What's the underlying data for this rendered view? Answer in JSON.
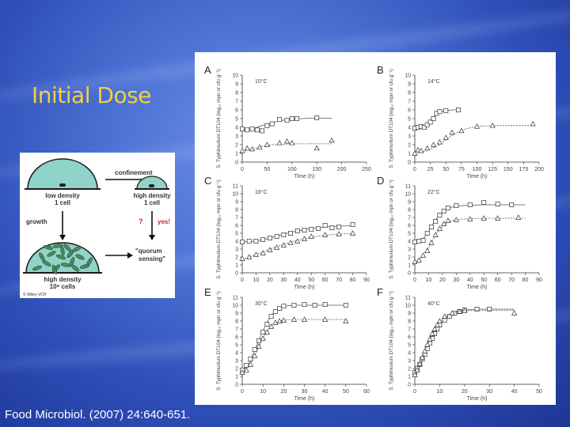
{
  "slide": {
    "title": "Initial Dose",
    "citation": "Food Microbiol. (2007) 24:640-651."
  },
  "quorum_diagram": {
    "confinement": "confinement",
    "low_density": "low density",
    "low_density_cells": "1 cell",
    "high_density_top": "high density",
    "high_density_top_cells": "1 cell",
    "growth": "growth",
    "question": "?",
    "yes": "yes!",
    "quorum_line1": "\"quorum",
    "quorum_line2": "sensing\"",
    "high_density_bottom": "high density",
    "high_density_bottom_cells": "10⁸ cells",
    "credit": "© Wiley-VCH"
  },
  "colors": {
    "title": "#f2d040",
    "background": "#3b5cc4",
    "dome": "#8fd3c9",
    "cells": "#4a8a5c",
    "red_label": "#d8232a"
  },
  "chart_data": [
    {
      "type": "scatter",
      "panel": "A",
      "annotation": "10°C",
      "ylabel": "S. Typhimurium DT104 (log₁₀ mpn or cfu g⁻¹)",
      "xlabel": "Time (h)",
      "xlim": [
        0,
        250
      ],
      "ylim": [
        0,
        10
      ],
      "xticks": [
        "0",
        "50",
        "100",
        "150",
        "200",
        "250"
      ],
      "yticks": [
        "0",
        "1",
        "2",
        "3",
        "4",
        "5",
        "6",
        "7",
        "8",
        "9",
        "10"
      ],
      "series": [
        {
          "marker": "square",
          "x": [
            0,
            10,
            20,
            30,
            40,
            50,
            60,
            75,
            90,
            100,
            110,
            150
          ],
          "y": [
            3.8,
            3.7,
            3.8,
            3.7,
            3.6,
            4.2,
            4.4,
            4.9,
            4.8,
            5.0,
            5.0,
            5.1
          ],
          "fit_x": [
            0,
            20,
            40,
            60,
            80,
            100,
            120,
            140,
            160,
            180
          ],
          "fit_y": [
            3.6,
            3.8,
            4.2,
            4.5,
            4.8,
            4.95,
            5.0,
            5.05,
            5.05,
            5.05
          ]
        },
        {
          "marker": "triangle",
          "x": [
            0,
            10,
            20,
            35,
            50,
            75,
            90,
            100,
            150,
            180
          ],
          "y": [
            1.3,
            1.6,
            1.5,
            1.7,
            2.0,
            2.2,
            2.4,
            2.2,
            1.6,
            2.5
          ],
          "fit_x": [
            0,
            20,
            40,
            60,
            80,
            100,
            140,
            180
          ],
          "fit_y": [
            1.2,
            1.5,
            1.8,
            2.0,
            2.05,
            2.1,
            2.1,
            2.1
          ]
        }
      ]
    },
    {
      "type": "scatter",
      "panel": "B",
      "annotation": "14°C",
      "ylabel": "S. Typhimurium DT104 (log₁₀ mpn or cfu g⁻¹)",
      "xlabel": "Time (h)",
      "xlim": [
        0,
        200
      ],
      "ylim": [
        0,
        10
      ],
      "xticks": [
        "0",
        "25",
        "50",
        "75",
        "100",
        "125",
        "150",
        "175",
        "200"
      ],
      "yticks": [
        "0",
        "1",
        "2",
        "3",
        "4",
        "5",
        "6",
        "7",
        "8",
        "9",
        "10"
      ],
      "series": [
        {
          "marker": "square",
          "x": [
            0,
            5,
            10,
            15,
            20,
            25,
            30,
            35,
            40,
            50,
            70
          ],
          "y": [
            3.9,
            4.0,
            4.1,
            4.0,
            4.3,
            4.6,
            5.0,
            5.6,
            5.8,
            5.9,
            6.0
          ],
          "fit_x": [
            0,
            10,
            20,
            30,
            40,
            50,
            60,
            70
          ],
          "fit_y": [
            3.9,
            4.0,
            4.4,
            5.2,
            5.8,
            5.9,
            6.0,
            6.0
          ]
        },
        {
          "marker": "triangle",
          "x": [
            0,
            5,
            10,
            20,
            30,
            40,
            50,
            60,
            75,
            100,
            125,
            190
          ],
          "y": [
            1.0,
            1.4,
            1.3,
            1.6,
            2.0,
            2.3,
            2.8,
            3.4,
            3.6,
            4.1,
            4.2,
            4.4
          ],
          "fit_x": [
            0,
            20,
            40,
            60,
            80,
            100,
            125,
            150,
            190
          ],
          "fit_y": [
            1.0,
            1.3,
            2.0,
            3.1,
            3.8,
            4.1,
            4.2,
            4.2,
            4.2
          ]
        }
      ]
    },
    {
      "type": "scatter",
      "panel": "C",
      "annotation": "18°C",
      "ylabel": "S. Typhimurium DT104 (log₁₀ mpn or cfu g⁻¹)",
      "xlabel": "Time (h)",
      "xlim": [
        0,
        90
      ],
      "ylim": [
        0,
        11
      ],
      "xticks": [
        "0",
        "10",
        "20",
        "30",
        "40",
        "50",
        "60",
        "70",
        "80",
        "90"
      ],
      "yticks": [
        "0",
        "1",
        "2",
        "3",
        "4",
        "5",
        "6",
        "7",
        "8",
        "9",
        "10",
        "11"
      ],
      "series": [
        {
          "marker": "square",
          "x": [
            0,
            5,
            10,
            15,
            20,
            25,
            30,
            35,
            40,
            45,
            50,
            55,
            60,
            65,
            70,
            80
          ],
          "y": [
            3.9,
            4.0,
            4.0,
            4.2,
            4.4,
            4.6,
            4.8,
            5.0,
            5.3,
            5.4,
            5.5,
            5.6,
            6.0,
            5.7,
            5.8,
            6.1
          ],
          "fit_x": [
            0,
            10,
            20,
            30,
            40,
            50,
            60,
            70,
            80
          ],
          "fit_y": [
            3.9,
            4.0,
            4.4,
            4.9,
            5.3,
            5.6,
            5.8,
            5.9,
            5.95
          ]
        },
        {
          "marker": "triangle",
          "x": [
            0,
            5,
            10,
            15,
            20,
            25,
            30,
            35,
            40,
            45,
            50,
            60,
            70,
            80
          ],
          "y": [
            1.8,
            2.0,
            2.3,
            2.5,
            2.9,
            3.2,
            3.5,
            3.8,
            4.0,
            4.3,
            4.6,
            4.8,
            4.9,
            5.0
          ],
          "fit_x": [
            0,
            10,
            20,
            30,
            40,
            50,
            60,
            70,
            80
          ],
          "fit_y": [
            1.7,
            2.3,
            3.0,
            3.6,
            4.1,
            4.5,
            4.75,
            4.9,
            4.95
          ]
        }
      ]
    },
    {
      "type": "scatter",
      "panel": "D",
      "annotation": "22°C",
      "ylabel": "S. Typhimurium DT104 (log₁₀ mpn or cfu g⁻¹)",
      "xlabel": "Time (h)",
      "xlim": [
        0,
        90
      ],
      "ylim": [
        0,
        11
      ],
      "xticks": [
        "0",
        "10",
        "20",
        "30",
        "40",
        "50",
        "60",
        "70",
        "80",
        "90"
      ],
      "yticks": [
        "0",
        "1",
        "2",
        "3",
        "4",
        "5",
        "6",
        "7",
        "8",
        "9",
        "10",
        "11"
      ],
      "series": [
        {
          "marker": "square",
          "x": [
            0,
            3,
            6,
            9,
            12,
            15,
            18,
            21,
            24,
            30,
            40,
            50,
            60,
            70
          ],
          "y": [
            3.9,
            4.0,
            4.1,
            5.0,
            5.8,
            6.5,
            7.3,
            7.8,
            8.2,
            8.5,
            8.6,
            8.9,
            8.7,
            8.6
          ],
          "fit_x": [
            0,
            5,
            10,
            15,
            20,
            25,
            30,
            40,
            50,
            60,
            70,
            80
          ],
          "fit_y": [
            3.9,
            4.1,
            5.2,
            6.7,
            7.7,
            8.2,
            8.45,
            8.55,
            8.6,
            8.6,
            8.6,
            8.6
          ]
        },
        {
          "marker": "triangle",
          "x": [
            0,
            3,
            6,
            9,
            12,
            15,
            18,
            21,
            24,
            30,
            40,
            50,
            60,
            75
          ],
          "y": [
            1.4,
            1.6,
            2.2,
            2.8,
            3.8,
            4.8,
            5.6,
            6.2,
            6.6,
            6.7,
            6.8,
            6.9,
            6.9,
            7.0
          ],
          "fit_x": [
            0,
            5,
            10,
            15,
            20,
            25,
            30,
            40,
            50,
            60,
            70,
            80
          ],
          "fit_y": [
            1.3,
            1.9,
            3.2,
            4.8,
            5.9,
            6.5,
            6.75,
            6.85,
            6.9,
            6.9,
            6.9,
            6.9
          ]
        }
      ]
    },
    {
      "type": "scatter",
      "panel": "E",
      "annotation": "30°C",
      "ylabel": "S. Typhimurium DT104 (log₁₀ mpn or cfu g⁻¹)",
      "xlabel": "Time (h)",
      "xlim": [
        0,
        60
      ],
      "ylim": [
        0,
        11
      ],
      "xticks": [
        "0",
        "10",
        "20",
        "30",
        "40",
        "50",
        "60"
      ],
      "yticks": [
        "0",
        "1",
        "2",
        "3",
        "4",
        "5",
        "6",
        "7",
        "8",
        "9",
        "10",
        "11"
      ],
      "series": [
        {
          "marker": "square",
          "x": [
            0,
            2,
            4,
            6,
            8,
            10,
            12,
            14,
            16,
            18,
            20,
            25,
            30,
            35,
            40,
            50
          ],
          "y": [
            1.8,
            2.4,
            3.2,
            4.4,
            5.5,
            6.6,
            7.6,
            8.6,
            9.2,
            9.6,
            9.9,
            10.0,
            10.1,
            10.0,
            10.1,
            10.0
          ],
          "fit_x": [
            0,
            3,
            6,
            9,
            12,
            15,
            18,
            21,
            25,
            30,
            40,
            50
          ],
          "fit_y": [
            1.6,
            2.6,
            4.3,
            6.2,
            7.9,
            9.0,
            9.6,
            9.9,
            10.0,
            10.0,
            10.0,
            10.0
          ]
        },
        {
          "marker": "triangle",
          "x": [
            0,
            2,
            4,
            6,
            8,
            10,
            12,
            14,
            16,
            18,
            20,
            25,
            30,
            40,
            50
          ],
          "y": [
            1.5,
            1.8,
            2.5,
            3.6,
            4.8,
            5.8,
            6.6,
            7.3,
            7.8,
            8.0,
            8.1,
            8.2,
            8.2,
            8.2,
            8.0
          ],
          "fit_x": [
            0,
            3,
            6,
            9,
            12,
            15,
            18,
            21,
            25,
            30,
            40,
            50
          ],
          "fit_y": [
            1.4,
            2.2,
            3.6,
            5.3,
            6.7,
            7.6,
            8.0,
            8.15,
            8.2,
            8.2,
            8.2,
            8.2
          ]
        }
      ]
    },
    {
      "type": "scatter",
      "panel": "F",
      "annotation": "40°C",
      "ylabel": "S. Typhimurium DT104 (log₁₀ mpn or cfu g⁻¹)",
      "xlabel": "Time (h)",
      "xlim": [
        0,
        50
      ],
      "ylim": [
        0,
        11
      ],
      "xticks": [
        "0",
        "10",
        "20",
        "30",
        "40",
        "50"
      ],
      "yticks": [
        "0",
        "1",
        "2",
        "3",
        "4",
        "5",
        "6",
        "7",
        "8",
        "9",
        "10",
        "11"
      ],
      "series": [
        {
          "marker": "square",
          "x": [
            0,
            1,
            2,
            3,
            4,
            5,
            6,
            7,
            8,
            9,
            10,
            12,
            14,
            16,
            18,
            20,
            25,
            30
          ],
          "y": [
            1.5,
            2.0,
            2.5,
            3.2,
            3.8,
            4.5,
            5.2,
            5.8,
            6.4,
            7.0,
            7.5,
            8.1,
            8.6,
            9.0,
            9.2,
            9.4,
            9.5,
            9.5
          ],
          "fit_x": [
            0,
            2,
            4,
            6,
            8,
            10,
            12,
            14,
            16,
            18,
            20,
            25,
            30,
            40
          ],
          "fit_y": [
            1.3,
            2.4,
            3.8,
            5.3,
            6.6,
            7.6,
            8.3,
            8.8,
            9.1,
            9.3,
            9.4,
            9.5,
            9.5,
            9.5
          ]
        },
        {
          "marker": "triangle",
          "x": [
            0,
            1,
            2,
            3,
            4,
            5,
            6,
            7,
            8,
            9,
            10,
            12,
            15,
            18,
            20,
            40
          ],
          "y": [
            1.2,
            1.8,
            2.6,
            3.4,
            4.2,
            5.0,
            5.7,
            6.4,
            7.0,
            7.5,
            8.0,
            8.6,
            9.0,
            9.2,
            9.3,
            9.0
          ],
          "fit_x": [
            0,
            2,
            4,
            6,
            8,
            10,
            12,
            15,
            18,
            20,
            25,
            30,
            40
          ],
          "fit_y": [
            1.0,
            2.3,
            4.0,
            5.6,
            6.9,
            7.9,
            8.5,
            9.0,
            9.2,
            9.3,
            9.35,
            9.35,
            9.35
          ]
        }
      ]
    }
  ]
}
